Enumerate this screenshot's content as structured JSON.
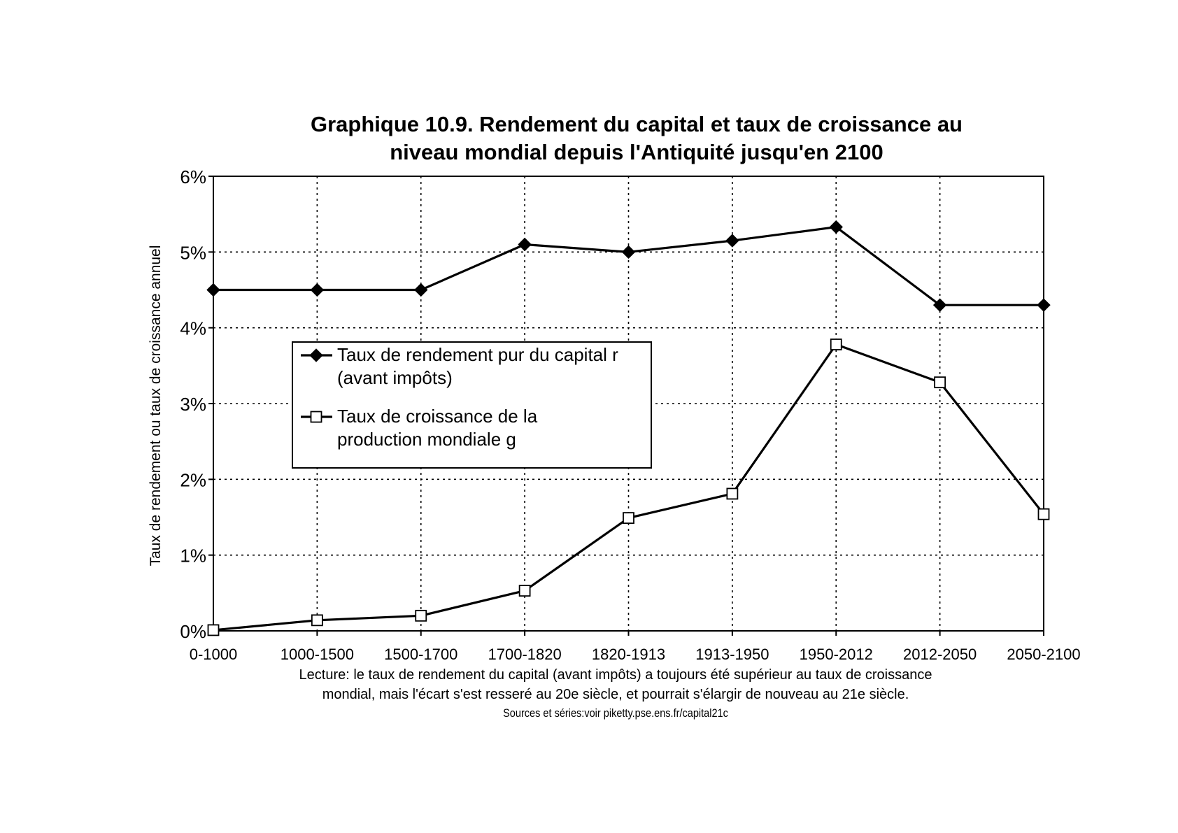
{
  "chart_data": {
    "type": "line",
    "title_lines": [
      "Graphique 10.9. Rendement du capital et taux de croissance au",
      "niveau mondial depuis l'Antiquité jusqu'en 2100"
    ],
    "ylabel": "Taux de rendement ou taux de croissance annuel",
    "xlabel": "",
    "categories": [
      "0-1000",
      "1000-1500",
      "1500-1700",
      "1700-1820",
      "1820-1913",
      "1913-1950",
      "1950-2012",
      "2012-2050",
      "2050-2100"
    ],
    "ylim": [
      0,
      6
    ],
    "yticks": [
      0,
      1,
      2,
      3,
      4,
      5,
      6
    ],
    "ytick_labels": [
      "0%",
      "1%",
      "2%",
      "3%",
      "4%",
      "5%",
      "6%"
    ],
    "grid": true,
    "legend_position": "center-left",
    "series": [
      {
        "name": "Taux de rendement pur du capital r (avant impôts)",
        "legend_lines": [
          "Taux de rendement pur du capital r",
          "(avant impôts)"
        ],
        "marker": "filled-diamond",
        "values": [
          4.5,
          4.5,
          4.5,
          5.1,
          5.0,
          5.15,
          5.33,
          4.3,
          4.3
        ]
      },
      {
        "name": "Taux de croissance de la production mondiale g",
        "legend_lines": [
          "Taux de croissance de la",
          "production mondiale g"
        ],
        "marker": "open-square",
        "values": [
          0.01,
          0.14,
          0.2,
          0.53,
          1.49,
          1.81,
          3.78,
          3.28,
          1.54
        ]
      }
    ],
    "caption_lines": [
      "Lecture: le taux de rendement du capital (avant impôts) a toujours été supérieur au taux de croissance",
      "mondial, mais l'écart s'est resseré au 20e siècle, et pourrait s'élargir de nouveau au 21e siècle."
    ],
    "source": "Sources et séries:voir piketty.pse.ens.fr/capital21c"
  },
  "colors": {
    "line": "#000000",
    "grid": "#000000",
    "background": "#ffffff"
  }
}
